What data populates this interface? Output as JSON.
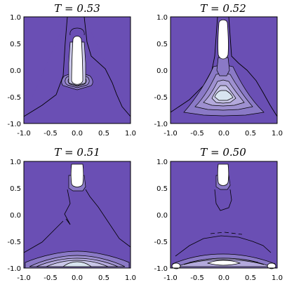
{
  "chart_data": [
    {
      "type": "heatmap",
      "title": "T = 0.53",
      "xlim": [
        -1.0,
        1.0
      ],
      "ylim": [
        -1.0,
        1.0
      ],
      "xticks": [
        "-1.0",
        "-0.5",
        "0.0",
        "0.5",
        "1.0"
      ],
      "yticks": [
        "-1.0",
        "-0.5",
        "0.0",
        "0.5",
        "1.0"
      ],
      "features": [
        {
          "kind": "white-peak",
          "x": 0.0,
          "y": 0.2,
          "shape": "vertical column from y=-0.35 to y=0.65"
        },
        {
          "kind": "level-contours",
          "x": 0.0,
          "y": -0.3,
          "levels": 6
        }
      ]
    },
    {
      "type": "heatmap",
      "title": "T = 0.52",
      "xlim": [
        -1.0,
        1.0
      ],
      "ylim": [
        -1.0,
        1.0
      ],
      "xticks": [
        "-1.0",
        "-0.5",
        "0.0",
        "0.5",
        "1.0"
      ],
      "yticks": [
        "-1.0",
        "-0.5",
        "0.0",
        "0.5",
        "1.0"
      ],
      "features": [
        {
          "kind": "white-peak",
          "x": 0.0,
          "y": 0.7,
          "shape": "column from y=0.45 to y=0.95"
        },
        {
          "kind": "level-contours",
          "x": 0.0,
          "y": -0.45,
          "levels": 5
        }
      ]
    },
    {
      "type": "heatmap",
      "title": "T = 0.51",
      "xlim": [
        -1.0,
        1.0
      ],
      "ylim": [
        -1.0,
        1.0
      ],
      "xticks": [
        "-1.0",
        "-0.5",
        "0.0",
        "0.5",
        "1.0"
      ],
      "yticks": [
        "-1.0",
        "-0.5",
        "0.0",
        "0.5",
        "1.0"
      ],
      "features": [
        {
          "kind": "white-peak",
          "x": 0.0,
          "y": 0.85,
          "shape": "small blob near top"
        },
        {
          "kind": "level-contours",
          "x": 0.0,
          "y": -0.85,
          "levels": 5
        }
      ]
    },
    {
      "type": "heatmap",
      "title": "T = 0.50",
      "xlim": [
        -1.0,
        1.0
      ],
      "ylim": [
        -1.0,
        1.0
      ],
      "xticks": [
        "-1.0",
        "-0.5",
        "0.0",
        "0.5",
        "1.0"
      ],
      "yticks": [
        "-1.0",
        "-0.5",
        "0.0",
        "0.5",
        "1.0"
      ],
      "features": [
        {
          "kind": "white-peak",
          "x": 0.0,
          "y": 0.85,
          "shape": "small blob near top"
        },
        {
          "kind": "white-peak",
          "x": -0.95,
          "y": -0.95,
          "shape": "corner spot"
        },
        {
          "kind": "white-peak",
          "x": 0.95,
          "y": -0.95,
          "shape": "corner spot"
        },
        {
          "kind": "level-contours",
          "x": 0.0,
          "y": -0.85,
          "levels": 6
        }
      ]
    }
  ],
  "colors": {
    "background_fill": "#6a4fb4",
    "level_1": "#8a79c6",
    "level_2": "#9e90d0",
    "level_3": "#b3a9dc",
    "level_4": "#c9c6e8",
    "level_5": "#d8e4f0",
    "peak": "#ffffff",
    "contour_line": "#000000",
    "frame": "#000000"
  }
}
